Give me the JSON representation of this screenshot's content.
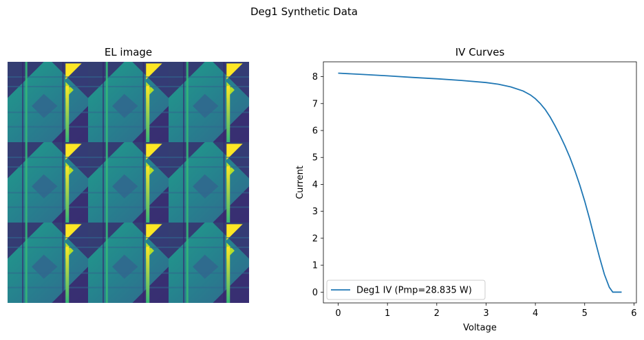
{
  "figure": {
    "title": "Deg1 Synthetic Data"
  },
  "el_image": {
    "title": "EL image",
    "grid_rows": 3,
    "grid_cols": 3,
    "colormap": "viridis",
    "colors": {
      "background": "#3b1f6b",
      "mid_dark": "#31688e",
      "mid": "#26828e",
      "teal": "#1f9e89",
      "green": "#35b779",
      "bright": "#b5de2b",
      "yellow": "#fde725"
    }
  },
  "chart_data": {
    "type": "line",
    "title": "IV Curves",
    "xlabel": "Voltage",
    "ylabel": "Current",
    "xlim": [
      -0.3,
      6.05
    ],
    "ylim": [
      -0.4,
      8.55
    ],
    "xticks": [
      0,
      1,
      2,
      3,
      4,
      5,
      6
    ],
    "yticks": [
      0,
      1,
      2,
      3,
      4,
      5,
      6,
      7,
      8
    ],
    "grid": false,
    "legend_position": "lower-left",
    "series": [
      {
        "name": "Deg1 IV (Pmp=28.835 W)",
        "color": "#1f77b4",
        "x": [
          0,
          0.5,
          1.0,
          1.5,
          2.0,
          2.5,
          3.0,
          3.25,
          3.5,
          3.75,
          3.9,
          4.0,
          4.1,
          4.2,
          4.3,
          4.4,
          4.5,
          4.6,
          4.7,
          4.8,
          4.9,
          5.0,
          5.1,
          5.2,
          5.3,
          5.4,
          5.5,
          5.57,
          5.63,
          5.75
        ],
        "y": [
          8.13,
          8.08,
          8.03,
          7.97,
          7.92,
          7.86,
          7.78,
          7.72,
          7.62,
          7.47,
          7.32,
          7.18,
          7.0,
          6.78,
          6.5,
          6.17,
          5.82,
          5.43,
          5.0,
          4.52,
          3.98,
          3.38,
          2.72,
          2.0,
          1.3,
          0.66,
          0.18,
          0.0,
          0.0,
          0.0
        ]
      }
    ]
  }
}
